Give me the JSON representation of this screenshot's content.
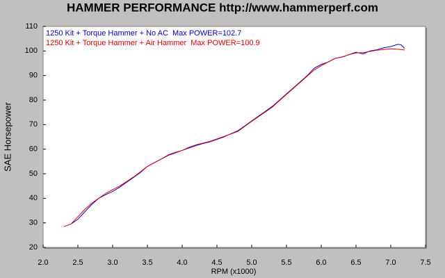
{
  "chart_data": {
    "type": "line",
    "title": "HAMMER PERFORMANCE http://www.hammerperf.com",
    "x_label": "RPM (x1000)",
    "y_label": "SAE Horsepower",
    "xlim": [
      2.0,
      7.5
    ],
    "ylim": [
      20,
      110
    ],
    "xticks": [
      {
        "value": 2,
        "label": "2.0"
      },
      2.5,
      {
        "value": 3,
        "label": "3.0"
      },
      3.5,
      {
        "value": 4,
        "label": "4.0"
      },
      4.5,
      {
        "value": 5,
        "label": "5.0"
      },
      5.5,
      {
        "value": 6,
        "label": "6.0"
      },
      6.5,
      {
        "value": 7,
        "label": "7.0"
      },
      7.5
    ],
    "yticks": [
      20,
      30,
      40,
      50,
      60,
      70,
      80,
      90,
      100,
      110
    ],
    "grid": false,
    "legend": "top-left",
    "series": [
      {
        "name": "1250 Kit + Torque Hammer + No AC  Max POWER=102.7",
        "color": "#0000c8",
        "x": [
          2.4,
          2.5,
          2.6,
          2.7,
          2.8,
          2.9,
          3.0,
          3.1,
          3.2,
          3.3,
          3.4,
          3.5,
          3.6,
          3.7,
          3.8,
          3.9,
          4.0,
          4.1,
          4.2,
          4.3,
          4.4,
          4.5,
          4.6,
          4.7,
          4.8,
          4.9,
          5.0,
          5.1,
          5.2,
          5.3,
          5.4,
          5.5,
          5.6,
          5.7,
          5.8,
          5.9,
          6.0,
          6.1,
          6.2,
          6.3,
          6.4,
          6.5,
          6.6,
          6.7,
          6.8,
          6.9,
          7.0,
          7.1,
          7.15,
          7.2
        ],
        "values": [
          29.5,
          31.5,
          34.5,
          37.5,
          40,
          41.5,
          42.8,
          44.5,
          46.5,
          48.5,
          50.5,
          53,
          54.5,
          56,
          57.5,
          58.5,
          59.5,
          60.5,
          61.5,
          62.3,
          63,
          64,
          65,
          66.3,
          67.5,
          69.5,
          71.5,
          73.5,
          75.5,
          77.5,
          80,
          82.5,
          85,
          87.5,
          90,
          93,
          94.5,
          95.5,
          97,
          97.5,
          98.5,
          99.5,
          98.8,
          100,
          100.5,
          101.3,
          101.8,
          102.7,
          102.5,
          101
        ]
      },
      {
        "name": "1250 Kit + Torque Hammer + Air Hammer  Max POWER=100.9",
        "color": "#e00000",
        "x": [
          2.3,
          2.4,
          2.5,
          2.6,
          2.7,
          2.8,
          2.9,
          3.0,
          3.1,
          3.2,
          3.3,
          3.4,
          3.5,
          3.6,
          3.7,
          3.8,
          3.9,
          4.0,
          4.1,
          4.2,
          4.3,
          4.4,
          4.5,
          4.6,
          4.7,
          4.8,
          4.9,
          5.0,
          5.1,
          5.2,
          5.3,
          5.4,
          5.5,
          5.6,
          5.7,
          5.8,
          5.9,
          6.0,
          6.1,
          6.2,
          6.3,
          6.4,
          6.5,
          6.6,
          6.7,
          6.8,
          6.9,
          7.0,
          7.1,
          7.2
        ],
        "values": [
          28.5,
          29.5,
          32.5,
          35.5,
          38,
          40,
          42,
          43.5,
          45,
          46.8,
          48.7,
          50.8,
          53,
          54.5,
          56,
          57.7,
          58.7,
          59.5,
          60.8,
          61.8,
          62.5,
          63.2,
          64.2,
          65.2,
          66.2,
          67.2,
          69.3,
          71.3,
          73.3,
          75.2,
          77.2,
          79.8,
          82.3,
          84.8,
          87.3,
          89.8,
          92.3,
          94,
          95.5,
          97,
          97.6,
          98.5,
          99.2,
          99.3,
          99.8,
          100.3,
          100.6,
          100.9,
          100.7,
          100.4
        ]
      }
    ]
  }
}
